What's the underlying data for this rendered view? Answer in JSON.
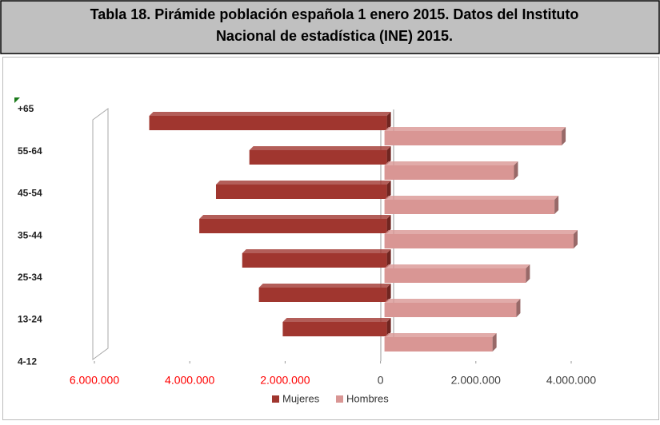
{
  "chart_data": {
    "type": "pyramid",
    "title_lines": [
      "Tabla 18. Pirámide población española 1 enero 2015. Datos del Instituto",
      "Nacional de estadística (INE) 2015."
    ],
    "categories": [
      "+65",
      "55-64",
      "45-54",
      "35-44",
      "25-34",
      "13-24",
      "4-12"
    ],
    "series": [
      {
        "name": "Mujeres",
        "color": "#a0362f",
        "values": [
          -4850000,
          -2750000,
          -3450000,
          -3800000,
          -2900000,
          -2550000,
          -2050000
        ]
      },
      {
        "name": "Hombres",
        "color": "#d99694",
        "values": [
          3800000,
          2800000,
          3650000,
          4050000,
          3050000,
          2850000,
          2350000
        ]
      }
    ],
    "xlim": [
      -6000000,
      4000000
    ],
    "xticks": [
      {
        "value": -6000000,
        "label": "6.000.000"
      },
      {
        "value": -4000000,
        "label": "4.000.000"
      },
      {
        "value": -2000000,
        "label": "2.000.000"
      },
      0,
      {
        "value": 2000000,
        "label": "2.000.000"
      },
      {
        "value": 4000000,
        "label": "4.000.000"
      }
    ],
    "negative_tick_color": "#ff0000",
    "positive_tick_color": "#404040",
    "legend": "bottom"
  }
}
